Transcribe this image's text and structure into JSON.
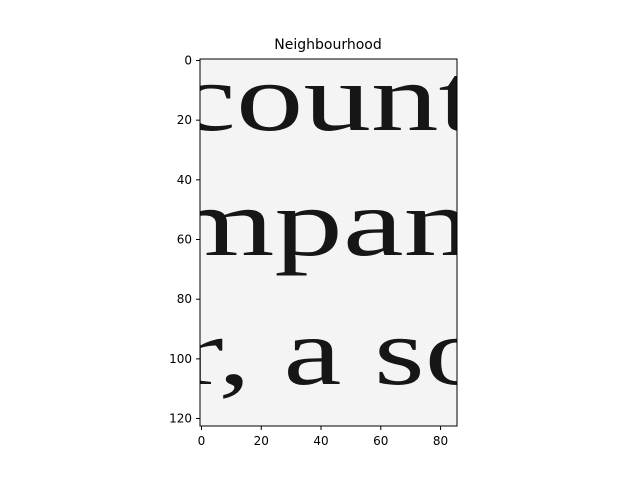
{
  "chart_data": {
    "type": "heatmap",
    "title": "Neighbourhood",
    "xlabel": "",
    "ylabel": "",
    "colormap": "gray",
    "xlim": [
      -0.5,
      85.5
    ],
    "ylim": [
      122.5,
      -0.5
    ],
    "x_ticks": [
      0,
      20,
      40,
      60,
      80
    ],
    "x_tick_labels": [
      "0",
      "20",
      "40",
      "60",
      "80"
    ],
    "y_ticks": [
      0,
      20,
      40,
      60,
      80,
      100,
      120
    ],
    "y_tick_labels": [
      "0",
      "20",
      "40",
      "60",
      "80",
      "100",
      "120"
    ],
    "grid": false,
    "image_text_lines": [
      "count",
      "mpan",
      "r, a so"
    ],
    "colors": {
      "paper": "#f1f1f1",
      "ink": "#161616",
      "frame": "#000000"
    }
  }
}
